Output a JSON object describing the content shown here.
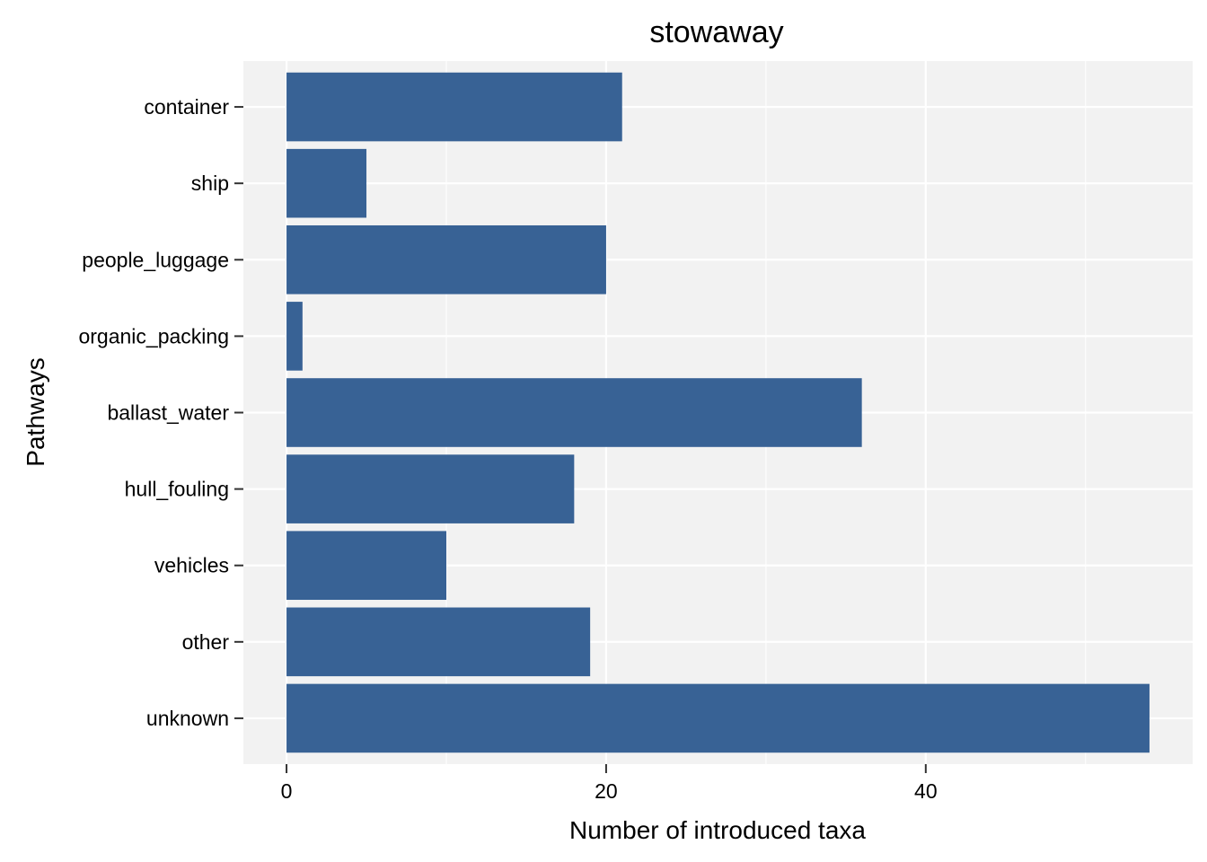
{
  "chart_data": {
    "type": "bar",
    "orientation": "horizontal",
    "title": "stowaway",
    "xlabel": "Number of introduced taxa",
    "ylabel": "Pathways",
    "categories": [
      "container",
      "ship",
      "people_luggage",
      "organic_packing",
      "ballast_water",
      "hull_fouling",
      "vehicles",
      "other",
      "unknown"
    ],
    "values": [
      21,
      5,
      20,
      1,
      36,
      18,
      10,
      19,
      54
    ],
    "xlim": [
      -2.7,
      56.7
    ],
    "xticks": [
      "0",
      "20",
      "40"
    ],
    "grid": true,
    "colors": {
      "bar": "#386295",
      "panel": "#f2f2f2",
      "grid": "#ffffff"
    }
  }
}
